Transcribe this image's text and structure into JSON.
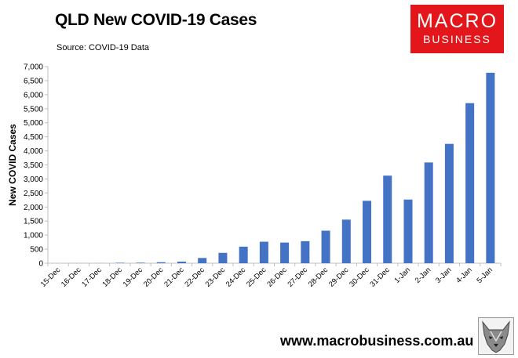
{
  "header": {
    "title": "QLD New COVID-19 Cases",
    "subtitle": "Source: COVID-19 Data"
  },
  "logo": {
    "line1": "MACRO",
    "line2": "BUSINESS",
    "color": "#e3161b"
  },
  "footer": {
    "website": "www.macrobusiness.com.au",
    "emblem_icon": "wolf-emblem-icon"
  },
  "chart_data": {
    "type": "bar",
    "title": "QLD New COVID-19 Cases",
    "ylabel": "New COVID Cases",
    "xlabel": "",
    "ylim": [
      0,
      7000
    ],
    "yticks": [
      "0",
      "500",
      "1,000",
      "1,500",
      "2,000",
      "2,500",
      "3,000",
      "3,500",
      "4,000",
      "4,500",
      "5,000",
      "5,500",
      "6,000",
      "6,500",
      "7,000"
    ],
    "ytick_values": [
      0,
      500,
      1000,
      1500,
      2000,
      2500,
      3000,
      3500,
      4000,
      4500,
      5000,
      5500,
      6000,
      6500,
      7000
    ],
    "categories": [
      "15-Dec",
      "16-Dec",
      "17-Dec",
      "18-Dec",
      "19-Dec",
      "20-Dec",
      "21-Dec",
      "22-Dec",
      "23-Dec",
      "24-Dec",
      "25-Dec",
      "26-Dec",
      "27-Dec",
      "28-Dec",
      "29-Dec",
      "30-Dec",
      "31-Dec",
      "1-Jan",
      "2-Jan",
      "3-Jan",
      "4-Jan",
      "5-Jan"
    ],
    "values": [
      0,
      1,
      2,
      16,
      19,
      35,
      56,
      186,
      369,
      589,
      765,
      735,
      784,
      1158,
      1552,
      2222,
      3118,
      2266,
      3587,
      4249,
      5699,
      6781
    ],
    "bar_color": "#4472c4",
    "grid": false,
    "legend": "none"
  }
}
